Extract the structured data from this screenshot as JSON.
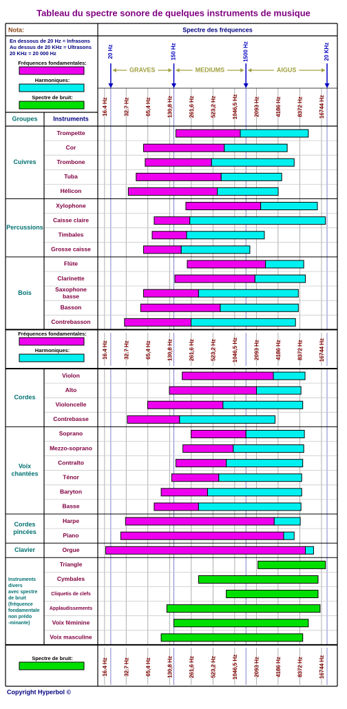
{
  "title": "Tableau du spectre sonore de quelques instruments de musique",
  "nota": {
    "heading": "Nota:",
    "lines": [
      "En dessous de 20 Hz = Infrasons",
      "Au dessus de 20 KHz = Ultrasons",
      "20 KHz = 20 000 Hz"
    ]
  },
  "chart_data": {
    "type": "range-bar",
    "axis_title": "Spectre des fréquences",
    "log_scale": true,
    "grid": true,
    "xlim": [
      13.2,
      27800
    ],
    "xticks": [
      {
        "value": 16.4,
        "label": "16.4 Hz"
      },
      {
        "value": 32.7,
        "label": "32.7 Hz"
      },
      {
        "value": 65.4,
        "label": "65,4 Hz"
      },
      {
        "value": 130.8,
        "label": "130,8 Hz"
      },
      {
        "value": 261.6,
        "label": "261,6 Hz"
      },
      {
        "value": 523.2,
        "label": "523,2 Hz"
      },
      {
        "value": 1046.5,
        "label": "1046,5 Hz"
      },
      {
        "value": 2093,
        "label": "2093 Hz"
      },
      {
        "value": 4186,
        "label": "4186 Hz"
      },
      {
        "value": 8372,
        "label": "8372 Hz"
      },
      {
        "value": 16744,
        "label": "16744 Hz"
      }
    ],
    "markers": [
      {
        "value": 20,
        "label": "20 Hz"
      },
      {
        "value": 150,
        "label": "150 Hz"
      },
      {
        "value": 1500,
        "label": "1500 Hz"
      },
      {
        "value": 20000,
        "label": "20 KHz"
      }
    ],
    "bands": [
      {
        "name": "GRAVES",
        "range": [
          20,
          150
        ]
      },
      {
        "name": "MEDIUMS",
        "range": [
          150,
          1500
        ]
      },
      {
        "name": "AIGUS",
        "range": [
          1500,
          20000
        ]
      }
    ],
    "series": [
      {
        "name": "Fréquences fondamentales:",
        "color": "#ee00ee"
      },
      {
        "name": "Harmoniques:",
        "color": "#00f0f0"
      },
      {
        "name": "Spectre de bruit:",
        "color": "#00e000"
      }
    ],
    "column_headers": [
      "Groupes",
      "Instruments"
    ],
    "blocks": [
      {
        "groups": [
          {
            "name": [
              "Cuivres"
            ],
            "instruments": [
              {
                "name": [
                  "Trompette"
                ],
                "fundamental": [
                  160,
                  1250
                ],
                "harmonics_to": 11000
              },
              {
                "name": [
                  "Cor"
                ],
                "fundamental": [
                  57,
                  750
                ],
                "harmonics_to": 5600
              },
              {
                "name": [
                  "Trombone"
                ],
                "fundamental": [
                  60,
                  500
                ],
                "harmonics_to": 7000
              },
              {
                "name": [
                  "Tuba"
                ],
                "fundamental": [
                  45,
                  680
                ],
                "harmonics_to": 4700
              },
              {
                "name": [
                  "Hélicon"
                ],
                "fundamental": [
                  35,
                  600
                ],
                "harmonics_to": 4200
              }
            ]
          },
          {
            "name": [
              "Percussions"
            ],
            "instruments": [
              {
                "name": [
                  "Xylophone"
                ],
                "fundamental": [
                  220,
                  2400
                ],
                "harmonics_to": 14700
              },
              {
                "name": [
                  "Caisse claire"
                ],
                "fundamental": [
                  80,
                  250
                ],
                "harmonics_to": 19000
              },
              {
                "name": [
                  "Timbales"
                ],
                "fundamental": [
                  75,
                  225
                ],
                "harmonics_to": 2700
              },
              {
                "name": [
                  "Grosse caisse"
                ],
                "fundamental": [
                  57,
                  190
                ],
                "harmonics_to": 1700
              }
            ]
          },
          {
            "name": [
              "Bois"
            ],
            "instruments": [
              {
                "name": [
                  "Flûte"
                ],
                "fundamental": [
                  230,
                  2800
                ],
                "harmonics_to": 9500
              },
              {
                "name": [
                  "Clarinette"
                ],
                "fundamental": [
                  155,
                  2000
                ],
                "harmonics_to": 10000
              },
              {
                "name": [
                  "Saxophone",
                  "basse"
                ],
                "fundamental": [
                  57,
                  330
                ],
                "harmonics_to": 8000
              },
              {
                "name": [
                  "Basson"
                ],
                "fundamental": [
                  52,
                  660
                ],
                "harmonics_to": 8000
              },
              {
                "name": [
                  "Contrebasson"
                ],
                "fundamental": [
                  31,
                  260
                ],
                "harmonics_to": 7300
              }
            ]
          }
        ]
      },
      {
        "groups": [
          {
            "name": [
              "Cordes"
            ],
            "instruments": [
              {
                "name": [
                  "Violon"
                ],
                "fundamental": [
                  196,
                  3600
                ],
                "harmonics_to": 9900
              },
              {
                "name": [
                  "Alto"
                ],
                "fundamental": [
                  130,
                  2100
                ],
                "harmonics_to": 8700
              },
              {
                "name": [
                  "Violoncelle"
                ],
                "fundamental": [
                  65,
                  720
                ],
                "harmonics_to": 9200
              },
              {
                "name": [
                  "Contrebasse"
                ],
                "fundamental": [
                  34,
                  180
                ],
                "harmonics_to": 3800
              }
            ]
          },
          {
            "name": [
              "Voix",
              "chantées"
            ],
            "instruments": [
              {
                "name": [
                  "Soprano"
                ],
                "fundamental": [
                  260,
                  1500
                ],
                "harmonics_to": 9700
              },
              {
                "name": [
                  "Mezzo-soprano"
                ],
                "fundamental": [
                  200,
                  1000
                ],
                "harmonics_to": 9500
              },
              {
                "name": [
                  "Contralto"
                ],
                "fundamental": [
                  160,
                  800
                ],
                "harmonics_to": 9200
              },
              {
                "name": [
                  "Ténor"
                ],
                "fundamental": [
                  140,
                  630
                ],
                "harmonics_to": 8900
              },
              {
                "name": [
                  "Baryton"
                ],
                "fundamental": [
                  100,
                  440
                ],
                "harmonics_to": 8900
              },
              {
                "name": [
                  "Basse"
                ],
                "fundamental": [
                  80,
                  330
                ],
                "harmonics_to": 8700
              }
            ]
          },
          {
            "name": [
              "Cordes",
              "pincées"
            ],
            "instruments": [
              {
                "name": [
                  "Harpe"
                ],
                "fundamental": [
                  32,
                  3700
                ],
                "harmonics_to": 8500
              },
              {
                "name": [
                  "Piano"
                ],
                "fundamental": [
                  27.5,
                  5000
                ],
                "harmonics_to": 7000
              }
            ]
          },
          {
            "name": [
              "Clavier"
            ],
            "instruments": [
              {
                "name": [
                  "Orgue"
                ],
                "fundamental": [
                  17,
                  10000
                ],
                "harmonics_to": 13000
              }
            ]
          },
          {
            "name": [
              "Instruments",
              "divers",
              "avec spectre",
              "de bruit",
              "(fréquence",
              "fondamentale",
              "non  prédo",
              "-minante)"
            ],
            "instruments": [
              {
                "name": [
                  "Triangle"
                ],
                "noise": [
                  2200,
                  19000
                ]
              },
              {
                "name": [
                  "Cymbales"
                ],
                "noise": [
                  330,
                  15000
                ]
              },
              {
                "name": [
                  "Cliquetis de clefs"
                ],
                "noise": [
                  800,
                  15000
                ]
              },
              {
                "name": [
                  "Applaudissements"
                ],
                "noise": [
                  120,
                  16000
                ]
              },
              {
                "name": [
                  "Voix féminine"
                ],
                "noise": [
                  150,
                  11000
                ]
              },
              {
                "name": [
                  "Voix masculine"
                ],
                "noise": [
                  100,
                  9200
                ]
              }
            ]
          }
        ]
      }
    ]
  },
  "copyright": "Copyright Hyperbol ©"
}
